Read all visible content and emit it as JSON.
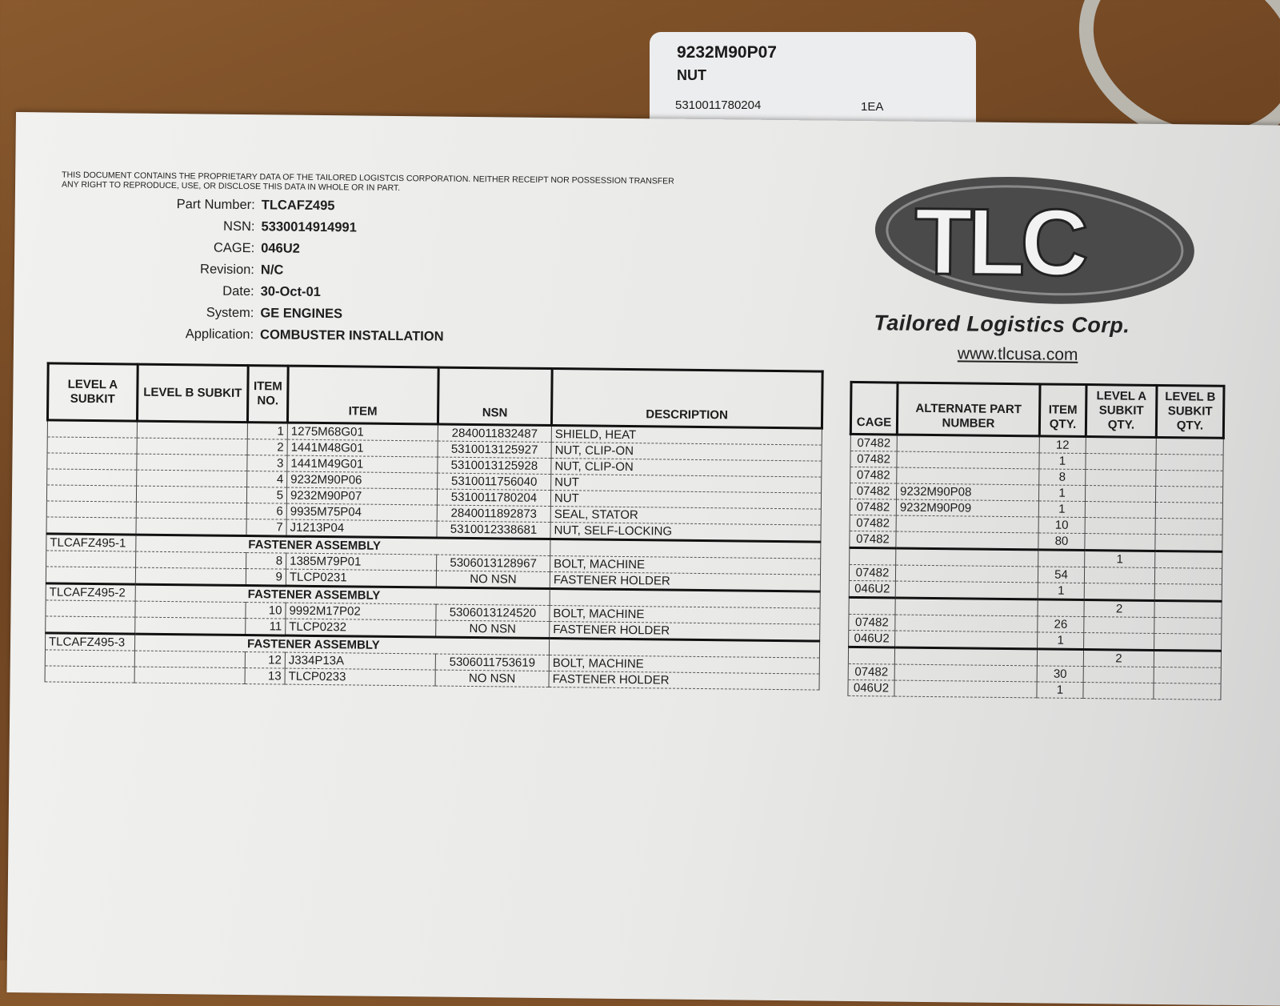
{
  "tag_card": {
    "part_number": "9232M90P07",
    "name": "NUT",
    "nsn": "5310011780204",
    "quantity": "1EA"
  },
  "document": {
    "legal_notice": [
      "THIS DOCUMENT CONTAINS THE PROPRIETARY DATA OF THE TAILORED LOGISTCIS CORPORATION. NEITHER RECEIPT NOR POSSESSION TRANSFER",
      "ANY RIGHT TO REPRODUCE, USE, OR DISCLOSE THIS DATA IN WHOLE OR IN PART."
    ],
    "fields": [
      {
        "label": "Part Number:",
        "value": "TLCAFZ495"
      },
      {
        "label": "NSN:",
        "value": "5330014914991"
      },
      {
        "label": "CAGE:",
        "value": "046U2"
      },
      {
        "label": "Revision:",
        "value": "N/C"
      },
      {
        "label": "Date:",
        "value": "30-Oct-01"
      },
      {
        "label": "System:",
        "value": "GE ENGINES"
      },
      {
        "label": "Application:",
        "value": "COMBUSTER INSTALLATION"
      }
    ],
    "logo": {
      "letters": "TLC",
      "company": "Tailored Logistics Corp.",
      "url": "www.tlcusa.com",
      "color": "#4a4a4a"
    }
  },
  "table": {
    "headers_left": [
      "LEVEL A SUBKIT",
      "LEVEL B SUBKIT",
      "ITEM NO.",
      "ITEM",
      "NSN",
      "DESCRIPTION"
    ],
    "headers_right": [
      "CAGE",
      "ALTERNATE PART NUMBER",
      "ITEM QTY.",
      "LEVEL A SUBKIT QTY.",
      "LEVEL B SUBKIT QTY."
    ],
    "left_rows": [
      {
        "a": "",
        "b": "",
        "no": "1",
        "item": "1275M68G01",
        "nsn": "2840011832487",
        "desc": "SHIELD, HEAT"
      },
      {
        "a": "",
        "b": "",
        "no": "2",
        "item": "1441M48G01",
        "nsn": "5310013125927",
        "desc": "NUT, CLIP-ON"
      },
      {
        "a": "",
        "b": "",
        "no": "3",
        "item": "1441M49G01",
        "nsn": "5310013125928",
        "desc": "NUT, CLIP-ON"
      },
      {
        "a": "",
        "b": "",
        "no": "4",
        "item": "9232M90P06",
        "nsn": "5310011756040",
        "desc": "NUT"
      },
      {
        "a": "",
        "b": "",
        "no": "5",
        "item": "9232M90P07",
        "nsn": "5310011780204",
        "desc": "NUT"
      },
      {
        "a": "",
        "b": "",
        "no": "6",
        "item": "9935M75P04",
        "nsn": "2840011892873",
        "desc": "SEAL, STATOR"
      },
      {
        "a": "",
        "b": "",
        "no": "7",
        "item": "J1213P04",
        "nsn": "5310012338681",
        "desc": "NUT, SELF-LOCKING"
      },
      {
        "group": true,
        "a": "TLCAFZ495-1",
        "title": "FASTENER ASSEMBLY"
      },
      {
        "a": "",
        "b": "",
        "no": "8",
        "item": "1385M79P01",
        "nsn": "5306013128967",
        "desc": "BOLT, MACHINE"
      },
      {
        "a": "",
        "b": "",
        "no": "9",
        "item": "TLCP0231",
        "nsn": "NO NSN",
        "desc": "FASTENER HOLDER"
      },
      {
        "group": true,
        "a": "TLCAFZ495-2",
        "title": "FASTENER ASSEMBLY"
      },
      {
        "a": "",
        "b": "",
        "no": "10",
        "item": "9992M17P02",
        "nsn": "5306013124520",
        "desc": "BOLT, MACHINE"
      },
      {
        "a": "",
        "b": "",
        "no": "11",
        "item": "TLCP0232",
        "nsn": "NO NSN",
        "desc": "FASTENER HOLDER"
      },
      {
        "group": true,
        "a": "TLCAFZ495-3",
        "title": "FASTENER ASSEMBLY"
      },
      {
        "a": "",
        "b": "",
        "no": "12",
        "item": "J334P13A",
        "nsn": "5306011753619",
        "desc": "BOLT, MACHINE"
      },
      {
        "a": "",
        "b": "",
        "no": "13",
        "item": "TLCP0233",
        "nsn": "NO NSN",
        "desc": "FASTENER HOLDER"
      }
    ],
    "right_rows": [
      {
        "cage": "07482",
        "alt": "",
        "qty": "12",
        "aq": "",
        "bq": ""
      },
      {
        "cage": "07482",
        "alt": "",
        "qty": "1",
        "aq": "",
        "bq": ""
      },
      {
        "cage": "07482",
        "alt": "",
        "qty": "8",
        "aq": "",
        "bq": ""
      },
      {
        "cage": "07482",
        "alt": "9232M90P08",
        "qty": "1",
        "aq": "",
        "bq": ""
      },
      {
        "cage": "07482",
        "alt": "9232M90P09",
        "qty": "1",
        "aq": "",
        "bq": ""
      },
      {
        "cage": "07482",
        "alt": "",
        "qty": "10",
        "aq": "",
        "bq": ""
      },
      {
        "cage": "07482",
        "alt": "",
        "qty": "80",
        "aq": "",
        "bq": ""
      },
      {
        "group": true,
        "cage": "",
        "alt": "",
        "qty": "",
        "aq": "1",
        "bq": ""
      },
      {
        "cage": "07482",
        "alt": "",
        "qty": "54",
        "aq": "",
        "bq": ""
      },
      {
        "cage": "046U2",
        "alt": "",
        "qty": "1",
        "aq": "",
        "bq": ""
      },
      {
        "group": true,
        "cage": "",
        "alt": "",
        "qty": "",
        "aq": "2",
        "bq": ""
      },
      {
        "cage": "07482",
        "alt": "",
        "qty": "26",
        "aq": "",
        "bq": ""
      },
      {
        "cage": "046U2",
        "alt": "",
        "qty": "1",
        "aq": "",
        "bq": ""
      },
      {
        "group": true,
        "cage": "",
        "alt": "",
        "qty": "",
        "aq": "2",
        "bq": ""
      },
      {
        "cage": "07482",
        "alt": "",
        "qty": "30",
        "aq": "",
        "bq": ""
      },
      {
        "cage": "046U2",
        "alt": "",
        "qty": "1",
        "aq": "",
        "bq": ""
      }
    ]
  }
}
